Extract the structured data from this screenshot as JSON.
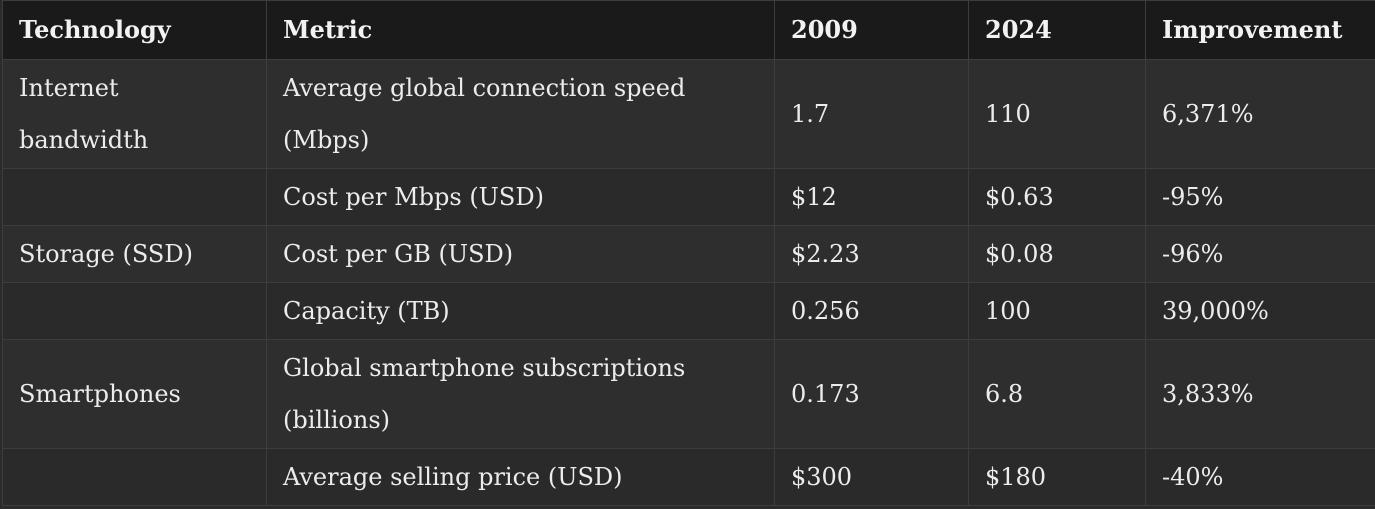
{
  "table": {
    "headers": [
      "Technology",
      "Metric",
      "2009",
      "2024",
      "Improvement"
    ],
    "rows": [
      [
        "Internet bandwidth",
        "Average global connection speed (Mbps)",
        "1.7",
        "110",
        "6,371%"
      ],
      [
        "",
        "Cost per Mbps (USD)",
        "$12",
        "$0.63",
        "-95%"
      ],
      [
        "Storage (SSD)",
        "Cost per GB (USD)",
        "$2.23",
        "$0.08",
        "-96%"
      ],
      [
        "",
        "Capacity (TB)",
        "0.256",
        "100",
        "39,000%"
      ],
      [
        "Smartphones",
        "Global smartphone subscriptions (billions)",
        "0.173",
        "6.8",
        "3,833%"
      ],
      [
        "",
        "Average selling price (USD)",
        "$300",
        "$180",
        "-40%"
      ]
    ]
  }
}
